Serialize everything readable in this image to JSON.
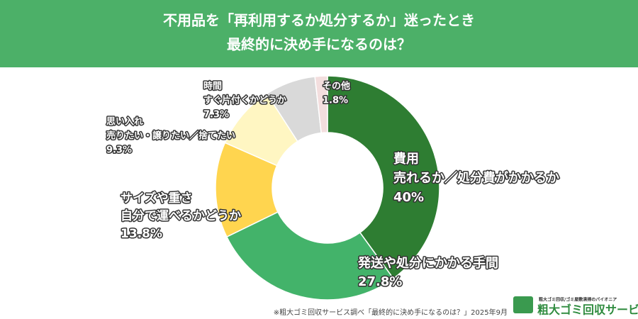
{
  "chart_data": {
    "type": "pie",
    "title": [
      "不用品を「再利用するか処分するか」迷ったとき",
      "最終的に決め手になるのは？"
    ],
    "categories": [
      [
        "費用",
        "売れるか／処分費がかかるか"
      ],
      [
        "発送や処分にかかる手間"
      ],
      [
        "サイズや重さ",
        "自分で運べるかどうか"
      ],
      [
        "思い入れ",
        "売りたい・譲りたい／捨てたい"
      ],
      [
        "時間",
        "すぐ片付くかどうか"
      ],
      [
        "その他"
      ]
    ],
    "values": [
      40,
      27.8,
      13.8,
      9.3,
      7.3,
      1.8
    ],
    "value_labels": [
      "40%",
      "27.8%",
      "13.8%",
      "9.3%",
      "7.3%",
      "1.8%"
    ],
    "colors": [
      "#2e7d32",
      "#43b36a",
      "#ffd54f",
      "#fff6c2",
      "#d9d9d9",
      "#f3dede"
    ],
    "donut": true,
    "note": "※粗大ゴミ回収サービス調べ「最終的に決め手になるのは？」2025年9月",
    "logo": {
      "tagline": "粗大ゴミ回収/ゴミ屋敷清掃のパイオニア",
      "name": "粗大ゴミ回収サービス"
    }
  }
}
